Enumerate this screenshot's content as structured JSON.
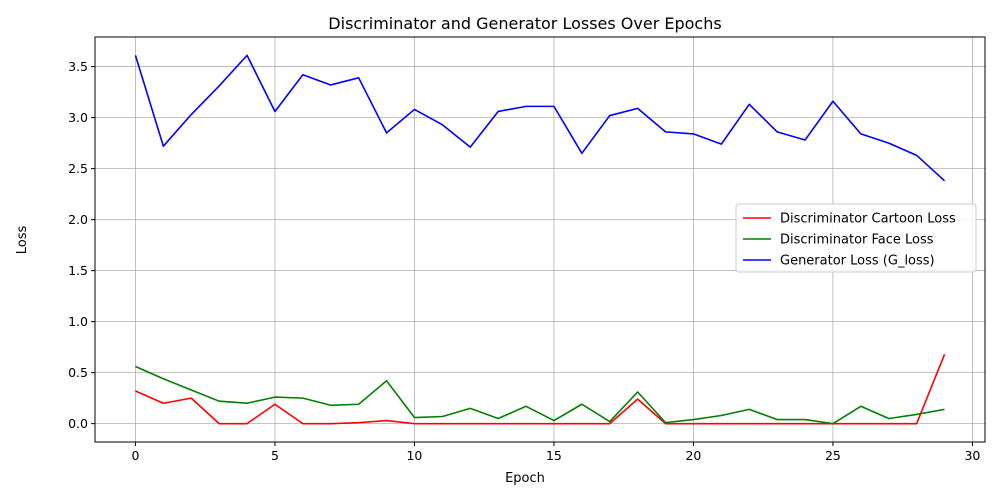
{
  "chart_data": {
    "type": "line",
    "title": "Discriminator and Generator Losses Over Epochs",
    "xlabel": "Epoch",
    "ylabel": "Loss",
    "xlim": [
      -1.45,
      30.45
    ],
    "ylim": [
      -0.18,
      3.79
    ],
    "xticks": [
      0,
      5,
      10,
      15,
      20,
      25,
      30
    ],
    "yticks": [
      0.0,
      0.5,
      1.0,
      1.5,
      2.0,
      2.5,
      3.0,
      3.5
    ],
    "xtick_labels": [
      "0",
      "5",
      "10",
      "15",
      "20",
      "25",
      "30"
    ],
    "ytick_labels": [
      "0.0",
      "0.5",
      "1.0",
      "1.5",
      "2.0",
      "2.5",
      "3.0",
      "3.5"
    ],
    "grid": true,
    "legend_position": "center-right",
    "x": [
      0,
      1,
      2,
      3,
      4,
      5,
      6,
      7,
      8,
      9,
      10,
      11,
      12,
      13,
      14,
      15,
      16,
      17,
      18,
      19,
      20,
      21,
      22,
      23,
      24,
      25,
      26,
      27,
      28,
      29
    ],
    "series": [
      {
        "name": "Discriminator  Cartoon Loss",
        "color": "#ff0000",
        "values": [
          0.32,
          0.2,
          0.25,
          0.0,
          0.0,
          0.19,
          0.0,
          0.0,
          0.01,
          0.03,
          0.0,
          0.0,
          0.0,
          0.0,
          0.0,
          0.0,
          0.0,
          0.0,
          0.24,
          0.0,
          0.0,
          0.0,
          0.0,
          0.0,
          0.0,
          0.0,
          0.0,
          0.0,
          0.0,
          0.68
        ]
      },
      {
        "name": "Discriminator  Face Loss",
        "color": "#008000",
        "values": [
          0.56,
          0.44,
          0.33,
          0.22,
          0.2,
          0.26,
          0.25,
          0.18,
          0.19,
          0.42,
          0.06,
          0.07,
          0.15,
          0.05,
          0.17,
          0.03,
          0.19,
          0.02,
          0.31,
          0.01,
          0.04,
          0.08,
          0.14,
          0.04,
          0.04,
          0.0,
          0.17,
          0.05,
          0.09,
          0.14
        ]
      },
      {
        "name": "Generator Loss (G_loss)",
        "color": "#0000ff",
        "values": [
          3.61,
          2.72,
          3.03,
          3.31,
          3.61,
          3.06,
          3.42,
          3.32,
          3.39,
          2.85,
          3.08,
          2.93,
          2.71,
          3.06,
          3.11,
          3.11,
          2.65,
          3.02,
          3.09,
          2.86,
          2.84,
          2.74,
          3.13,
          2.86,
          2.78,
          3.16,
          2.84,
          2.75,
          2.63,
          2.38
        ]
      }
    ]
  }
}
